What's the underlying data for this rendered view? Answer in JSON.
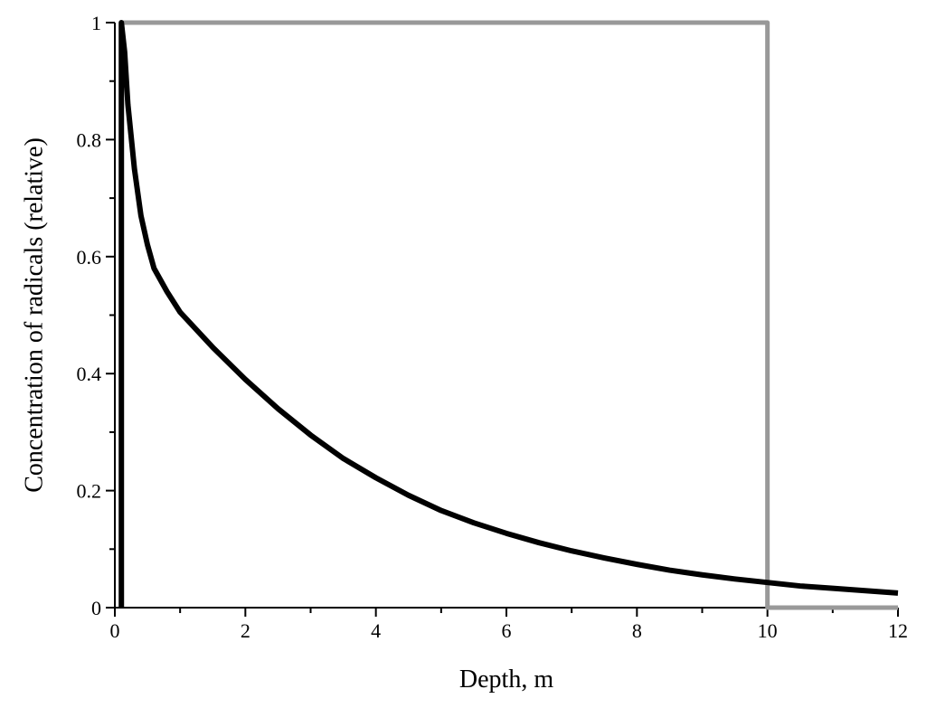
{
  "chart_data": {
    "type": "line",
    "title": "",
    "xlabel": "Depth, m",
    "ylabel": "Concentration of radicals (relative)",
    "xlim": [
      0,
      12
    ],
    "ylim": [
      0,
      1
    ],
    "xticks": [
      0,
      2,
      4,
      6,
      8,
      10,
      12
    ],
    "yticks": [
      0,
      0.2,
      0.4,
      0.6,
      0.8,
      1
    ],
    "xtick_labels": [
      "0",
      "2",
      "4",
      "6",
      "8",
      "10",
      "12"
    ],
    "ytick_labels": [
      "0",
      "0.2",
      "0.4",
      "0.6",
      "0.8",
      "1"
    ],
    "grid": false,
    "legend": "none",
    "series": [
      {
        "color": "#000000",
        "x": [
          0.1,
          0.1,
          0.15,
          0.2,
          0.3,
          0.4,
          0.5,
          0.6,
          0.8,
          1.0,
          1.5,
          2.0,
          2.5,
          3.0,
          3.5,
          4.0,
          4.5,
          5.0,
          5.5,
          6.0,
          6.5,
          7.0,
          7.5,
          8.0,
          8.5,
          9.0,
          9.5,
          10.0,
          10.5,
          11.0,
          11.5,
          12.0
        ],
        "y": [
          0,
          1.0,
          0.95,
          0.86,
          0.75,
          0.67,
          0.62,
          0.58,
          0.54,
          0.505,
          0.445,
          0.39,
          0.34,
          0.295,
          0.255,
          0.222,
          0.192,
          0.166,
          0.145,
          0.127,
          0.111,
          0.097,
          0.085,
          0.074,
          0.064,
          0.056,
          0.049,
          0.043,
          0.037,
          0.033,
          0.029,
          0.025
        ]
      },
      {
        "color": "#999999",
        "x": [
          0.1,
          0.1,
          10.0,
          10.0,
          12.0
        ],
        "y": [
          0,
          1,
          1,
          0,
          0
        ]
      }
    ]
  }
}
